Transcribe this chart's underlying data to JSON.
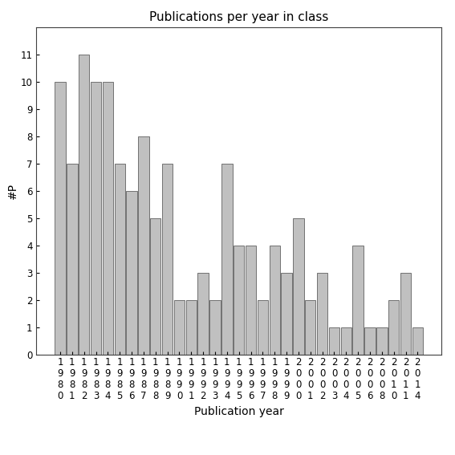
{
  "title": "Publications per year in class",
  "xlabel": "Publication year",
  "ylabel": "#P",
  "bar_color": "#c0c0c0",
  "edge_color": "#606060",
  "years": [
    1980,
    1981,
    1982,
    1983,
    1984,
    1985,
    1986,
    1987,
    1988,
    1989,
    1990,
    1991,
    1992,
    1993,
    1994,
    1995,
    1996,
    1997,
    1998,
    1999,
    2000,
    2001,
    2002,
    2003,
    2004,
    2005,
    2006,
    2008,
    2010,
    2011,
    2014
  ],
  "values": [
    10,
    7,
    11,
    10,
    10,
    7,
    6,
    8,
    5,
    7,
    2,
    2,
    3,
    2,
    7,
    4,
    4,
    2,
    4,
    3,
    5,
    2,
    3,
    1,
    1,
    4,
    1,
    1,
    2,
    3,
    1
  ],
  "ylim": [
    0,
    12
  ],
  "yticks": [
    0,
    1,
    2,
    3,
    4,
    5,
    6,
    7,
    8,
    9,
    10,
    11
  ],
  "background_color": "#ffffff",
  "title_fontsize": 11,
  "label_fontsize": 10,
  "tick_fontsize": 8.5
}
